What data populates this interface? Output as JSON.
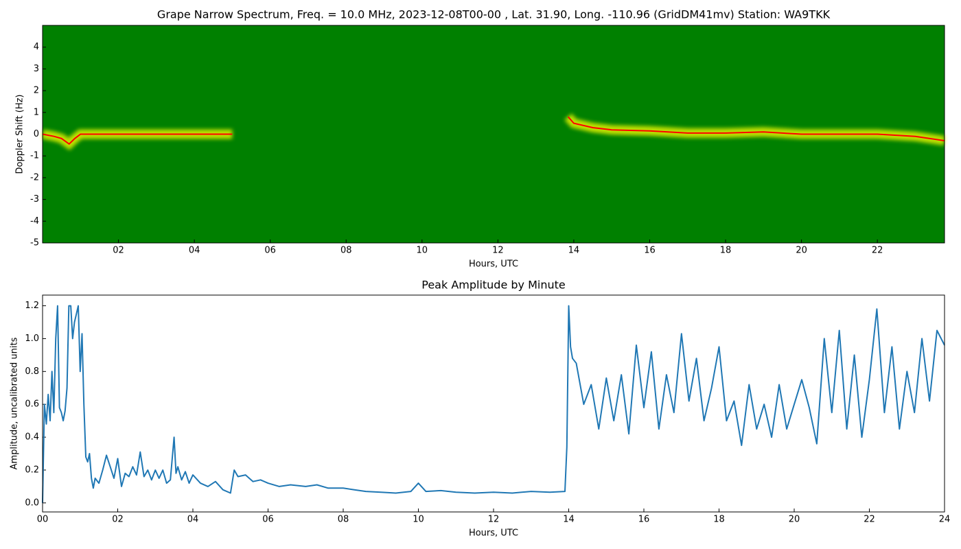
{
  "chart_data": [
    {
      "type": "spectrogram",
      "title": "Grape Narrow Spectrum, Freq. = 10.0 MHz, 2023-12-08T00-00 , Lat.  31.90, Long. -110.96 (GridDM41mv) Station: WA9TKK",
      "x_label": "Hours, UTC",
      "y_label": "Doppler Shift (Hz)",
      "background": "#008000",
      "color": "#ff0000",
      "x": [
        0,
        0.3,
        0.5,
        0.7,
        0.85,
        1.0,
        1.2,
        2.0,
        3.0,
        4.0,
        5.0,
        5.5,
        13.85,
        14.0,
        14.5,
        15.0,
        16.0,
        17.0,
        18.0,
        19.0,
        20.0,
        21.0,
        22.0,
        23.0,
        23.77
      ],
      "values": [
        0,
        -0.1,
        -0.2,
        -0.45,
        -0.2,
        0,
        0,
        0,
        0,
        0,
        0,
        null,
        0.8,
        0.5,
        0.3,
        0.2,
        0.15,
        0.05,
        0.05,
        0.1,
        0,
        0,
        0,
        -0.1,
        -0.3
      ],
      "xlim": [
        0,
        23.77
      ],
      "ylim": [
        -5,
        5
      ],
      "xticks": [
        {
          "value": 2,
          "label": "02"
        },
        {
          "value": 4,
          "label": "04"
        },
        {
          "value": 6,
          "label": "06"
        },
        {
          "value": 8,
          "label": "08"
        },
        {
          "value": 10,
          "label": "10"
        },
        {
          "value": 12,
          "label": "12"
        },
        {
          "value": 14,
          "label": "14"
        },
        {
          "value": 16,
          "label": "16"
        },
        {
          "value": 18,
          "label": "18"
        },
        {
          "value": 20,
          "label": "20"
        },
        {
          "value": 22,
          "label": "22"
        }
      ],
      "yticks": [
        -5,
        -4,
        -3,
        -2,
        -1,
        0,
        1,
        2,
        3,
        4
      ]
    },
    {
      "type": "line",
      "title": "Peak Amplitude by Minute",
      "x_label": "Hours, UTC",
      "y_label": "Amplitude, uncalibrated units",
      "color": "#1f77b4",
      "x": [
        0,
        0.05,
        0.1,
        0.15,
        0.2,
        0.25,
        0.3,
        0.35,
        0.4,
        0.45,
        0.5,
        0.55,
        0.6,
        0.65,
        0.7,
        0.75,
        0.8,
        0.85,
        0.9,
        0.95,
        1.0,
        1.05,
        1.1,
        1.15,
        1.2,
        1.25,
        1.3,
        1.35,
        1.4,
        1.5,
        1.6,
        1.7,
        1.8,
        1.9,
        2.0,
        2.1,
        2.2,
        2.3,
        2.4,
        2.5,
        2.6,
        2.7,
        2.8,
        2.9,
        3.0,
        3.1,
        3.2,
        3.3,
        3.4,
        3.5,
        3.55,
        3.6,
        3.7,
        3.8,
        3.9,
        4.0,
        4.2,
        4.4,
        4.6,
        4.8,
        5.0,
        5.1,
        5.2,
        5.4,
        5.6,
        5.8,
        6.0,
        6.3,
        6.6,
        7.0,
        7.3,
        7.6,
        8.0,
        8.3,
        8.6,
        9.0,
        9.4,
        9.8,
        10.0,
        10.2,
        10.6,
        11.0,
        11.5,
        12.0,
        12.5,
        13.0,
        13.5,
        13.9,
        13.95,
        14.0,
        14.05,
        14.1,
        14.2,
        14.4,
        14.6,
        14.8,
        15.0,
        15.2,
        15.4,
        15.6,
        15.8,
        16.0,
        16.2,
        16.4,
        16.6,
        16.8,
        17.0,
        17.2,
        17.4,
        17.6,
        17.8,
        18.0,
        18.2,
        18.4,
        18.6,
        18.8,
        19.0,
        19.2,
        19.4,
        19.6,
        19.8,
        20.0,
        20.2,
        20.4,
        20.6,
        20.8,
        21.0,
        21.2,
        21.4,
        21.6,
        21.8,
        22.0,
        22.2,
        22.4,
        22.6,
        22.8,
        23.0,
        23.2,
        23.4,
        23.6,
        23.8,
        24.0
      ],
      "values": [
        0.0,
        0.6,
        0.48,
        0.66,
        0.5,
        0.8,
        0.55,
        1.0,
        1.2,
        0.58,
        0.55,
        0.5,
        0.56,
        0.7,
        1.2,
        1.2,
        1.0,
        1.1,
        1.15,
        1.2,
        0.8,
        1.03,
        0.6,
        0.28,
        0.25,
        0.3,
        0.15,
        0.09,
        0.15,
        0.12,
        0.2,
        0.29,
        0.22,
        0.15,
        0.27,
        0.1,
        0.18,
        0.16,
        0.22,
        0.17,
        0.31,
        0.16,
        0.2,
        0.14,
        0.2,
        0.15,
        0.2,
        0.12,
        0.14,
        0.4,
        0.18,
        0.22,
        0.14,
        0.19,
        0.12,
        0.17,
        0.12,
        0.1,
        0.13,
        0.08,
        0.06,
        0.2,
        0.16,
        0.17,
        0.13,
        0.14,
        0.12,
        0.1,
        0.11,
        0.1,
        0.11,
        0.09,
        0.09,
        0.08,
        0.07,
        0.065,
        0.06,
        0.07,
        0.12,
        0.07,
        0.075,
        0.065,
        0.06,
        0.065,
        0.06,
        0.07,
        0.065,
        0.07,
        0.34,
        1.2,
        0.95,
        0.88,
        0.85,
        0.6,
        0.72,
        0.45,
        0.76,
        0.5,
        0.78,
        0.42,
        0.96,
        0.58,
        0.92,
        0.45,
        0.78,
        0.55,
        1.03,
        0.62,
        0.88,
        0.5,
        0.7,
        0.95,
        0.5,
        0.62,
        0.35,
        0.72,
        0.45,
        0.6,
        0.4,
        0.72,
        0.45,
        0.6,
        0.75,
        0.58,
        0.36,
        1.0,
        0.55,
        1.05,
        0.45,
        0.9,
        0.4,
        0.75,
        1.18,
        0.55,
        0.95,
        0.45,
        0.8,
        0.55,
        1.0,
        0.62,
        1.05,
        0.96
      ],
      "xlim": [
        0,
        24
      ],
      "ylim": [
        -0.055,
        1.265
      ],
      "xticks": [
        {
          "value": 0,
          "label": "00"
        },
        {
          "value": 2,
          "label": "02"
        },
        {
          "value": 4,
          "label": "04"
        },
        {
          "value": 6,
          "label": "06"
        },
        {
          "value": 8,
          "label": "08"
        },
        {
          "value": 10,
          "label": "10"
        },
        {
          "value": 12,
          "label": "12"
        },
        {
          "value": 14,
          "label": "14"
        },
        {
          "value": 16,
          "label": "16"
        },
        {
          "value": 18,
          "label": "18"
        },
        {
          "value": 20,
          "label": "20"
        },
        {
          "value": 22,
          "label": "22"
        },
        {
          "value": 24,
          "label": "24"
        }
      ],
      "yticks": [
        {
          "value": 0,
          "label": "0.0"
        },
        0.2,
        0.4,
        0.6,
        0.8,
        {
          "value": 1,
          "label": "1.0"
        },
        1.2
      ]
    }
  ]
}
